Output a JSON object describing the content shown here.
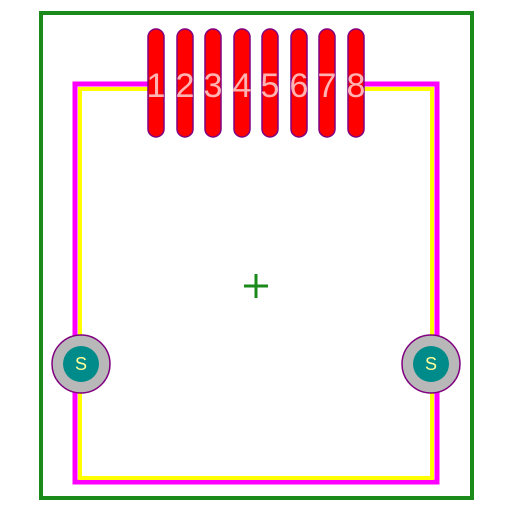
{
  "colors": {
    "background": "#ffffff",
    "courtyard": "#1a8a1a",
    "body_outline_outer": "#ff00ff",
    "body_outline_inner": "#ffff00",
    "pad_fill": "#ff0000",
    "pad_stroke": "#800080",
    "pad_label": "#ffb3b3",
    "hole_ring": "#b8b8b8",
    "hole_ring_stroke": "#800080",
    "hole_core": "#008b8b",
    "hole_label": "#ffff99",
    "origin_marker": "#1a8a1a"
  },
  "pads": [
    {
      "label": "1"
    },
    {
      "label": "2"
    },
    {
      "label": "3"
    },
    {
      "label": "4"
    },
    {
      "label": "5"
    },
    {
      "label": "6"
    },
    {
      "label": "7"
    },
    {
      "label": "8"
    }
  ],
  "shield_holes": [
    {
      "label": "S"
    },
    {
      "label": "S"
    }
  ],
  "origin_marker": "plus-icon"
}
